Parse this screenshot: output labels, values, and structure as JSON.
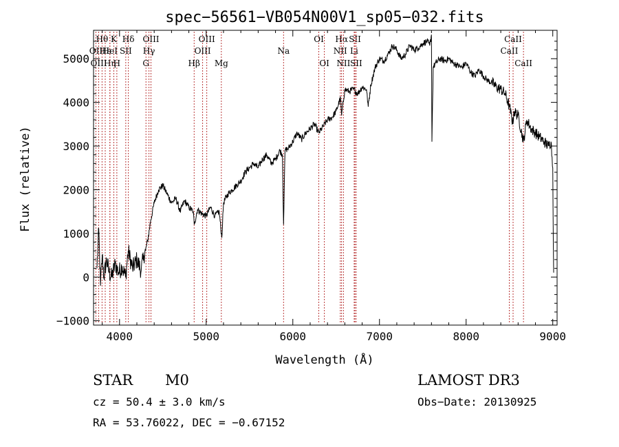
{
  "chart_data": {
    "type": "line",
    "title": "spec−56561−VB054N00V1_sp05−032.fits",
    "xlabel": "Wavelength (Å)",
    "ylabel": "Flux (relative)",
    "xlim": [
      3700,
      9050
    ],
    "ylim": [
      -1100,
      5650
    ],
    "xticks": [
      4000,
      5000,
      6000,
      7000,
      8000,
      9000
    ],
    "xtick_labels": [
      "4000",
      "5000",
      "6000",
      "7000",
      "8000",
      "9000"
    ],
    "yticks": [
      -1000,
      0,
      1000,
      2000,
      3000,
      4000,
      5000
    ],
    "ytick_labels": [
      "−1000",
      "0",
      "1000",
      "2000",
      "3000",
      "4000",
      "5000"
    ],
    "grid": false,
    "series": [
      {
        "name": "spectrum",
        "x": [
          3740,
          3760,
          3780,
          3800,
          3820,
          3850,
          3880,
          3910,
          3950,
          3990,
          4030,
          4070,
          4100,
          4150,
          4200,
          4250,
          4280,
          4300,
          4330,
          4360,
          4400,
          4450,
          4500,
          4550,
          4600,
          4650,
          4700,
          4750,
          4800,
          4850,
          4862,
          4900,
          4950,
          5000,
          5050,
          5100,
          5150,
          5180,
          5200,
          5250,
          5300,
          5350,
          5400,
          5450,
          5500,
          5550,
          5600,
          5650,
          5700,
          5750,
          5800,
          5850,
          5880,
          5893,
          5910,
          5950,
          6000,
          6050,
          6100,
          6150,
          6200,
          6250,
          6300,
          6350,
          6400,
          6450,
          6500,
          6550,
          6563,
          6600,
          6650,
          6700,
          6750,
          6800,
          6850,
          6870,
          6900,
          6950,
          7000,
          7050,
          7100,
          7150,
          7200,
          7250,
          7300,
          7350,
          7400,
          7450,
          7500,
          7550,
          7580,
          7600,
          7605,
          7620,
          7650,
          7700,
          7750,
          7800,
          7850,
          7900,
          7950,
          8000,
          8050,
          8100,
          8150,
          8200,
          8250,
          8300,
          8350,
          8400,
          8450,
          8500,
          8542,
          8550,
          8600,
          8662,
          8700,
          8750,
          8800,
          8850,
          8900,
          8950,
          8980,
          9000,
          9010
        ],
        "y": [
          200,
          1100,
          -200,
          500,
          0,
          400,
          100,
          0,
          300,
          100,
          250,
          0,
          600,
          200,
          400,
          150,
          500,
          600,
          900,
          1300,
          1700,
          2000,
          2100,
          1900,
          1700,
          1800,
          1500,
          1750,
          1600,
          1500,
          1200,
          1550,
          1450,
          1400,
          1600,
          1400,
          1500,
          900,
          1700,
          1900,
          2000,
          2100,
          2200,
          2400,
          2500,
          2600,
          2500,
          2700,
          2800,
          2600,
          2700,
          2900,
          2800,
          1200,
          2900,
          2950,
          3100,
          3300,
          3150,
          3300,
          3400,
          3500,
          3300,
          3450,
          3600,
          3650,
          3800,
          4100,
          3700,
          4300,
          4250,
          4300,
          4200,
          4350,
          4300,
          3900,
          4400,
          4800,
          5000,
          4950,
          5100,
          5300,
          5200,
          5000,
          5100,
          5300,
          5200,
          5250,
          5350,
          5400,
          5300,
          5550,
          3100,
          4800,
          4900,
          5000,
          4950,
          5000,
          4900,
          4850,
          4800,
          4900,
          4700,
          4600,
          4750,
          4600,
          4500,
          4450,
          4350,
          4300,
          4200,
          3900,
          3500,
          3800,
          3700,
          3100,
          3600,
          3400,
          3300,
          3200,
          3100,
          3000,
          3100,
          2500,
          100
        ]
      }
    ],
    "line_markers": [
      {
        "label": "Hθ",
        "x": 3798,
        "row": 1
      },
      {
        "label": "OII",
        "x": 3727,
        "row": 2
      },
      {
        "label": "OIII",
        "x": 3760,
        "row": 3
      },
      {
        "label": "Hε",
        "x": 3835,
        "row": 2
      },
      {
        "label": "Hη",
        "x": 3889,
        "row": 3
      },
      {
        "label": "K",
        "x": 3934,
        "row": 1
      },
      {
        "label": "HeI",
        "x": 3889,
        "row": 2
      },
      {
        "label": "H",
        "x": 3969,
        "row": 3
      },
      {
        "label": "SII",
        "x": 4072,
        "row": 2
      },
      {
        "label": "Hδ",
        "x": 4102,
        "row": 1
      },
      {
        "label": "OIII",
        "x": 4363,
        "row": 1
      },
      {
        "label": "Hγ",
        "x": 4340,
        "row": 2
      },
      {
        "label": "G",
        "x": 4305,
        "row": 3
      },
      {
        "label": "Hβ",
        "x": 4861,
        "row": 3
      },
      {
        "label": "OIII",
        "x": 5007,
        "row": 1
      },
      {
        "label": "OIII",
        "x": 4959,
        "row": 2
      },
      {
        "label": "Mg",
        "x": 5175,
        "row": 3
      },
      {
        "label": "Na",
        "x": 5893,
        "row": 2
      },
      {
        "label": "OI",
        "x": 6300,
        "row": 1
      },
      {
        "label": "OI",
        "x": 6364,
        "row": 3
      },
      {
        "label": "Hα",
        "x": 6563,
        "row": 1
      },
      {
        "label": "NII",
        "x": 6548,
        "row": 2
      },
      {
        "label": "NII",
        "x": 6584,
        "row": 3
      },
      {
        "label": "SII",
        "x": 6717,
        "row": 1
      },
      {
        "label": "Li",
        "x": 6708,
        "row": 2
      },
      {
        "label": "SII",
        "x": 6731,
        "row": 3
      },
      {
        "label": "CaII",
        "x": 8542,
        "row": 1
      },
      {
        "label": "CaII",
        "x": 8498,
        "row": 2
      },
      {
        "label": "CaII",
        "x": 8662,
        "row": 3
      }
    ]
  },
  "info": {
    "class_label": "STAR",
    "subclass": "M0",
    "redshift": "cz = 50.4 ± 3.0 km/s",
    "coords": "RA =  53.76022, DEC =  −0.67152",
    "survey": "LAMOST DR3",
    "obs_date": "Obs−Date: 20130925"
  },
  "colors": {
    "marker_line": "#b22222",
    "spectrum": "#000000"
  }
}
